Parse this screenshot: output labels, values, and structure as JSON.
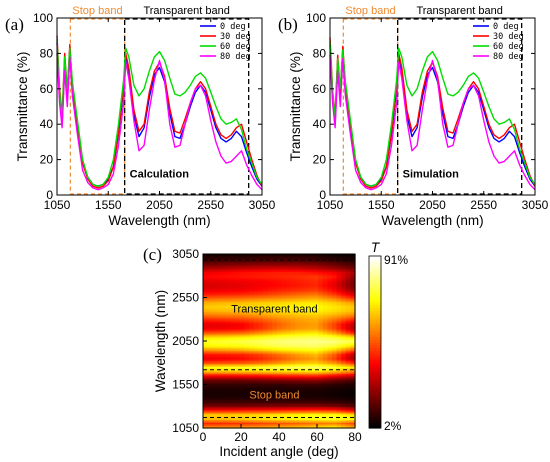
{
  "chart_data": [
    {
      "panel": "(a)",
      "type": "line",
      "xlabel": "Wavelength (nm)",
      "ylabel": "Transmittance (%)",
      "xlim": [
        1050,
        3050
      ],
      "ylim": [
        0,
        100
      ],
      "xticks": [
        "1050",
        "1550",
        "2050",
        "2550",
        "3050"
      ],
      "yticks": [
        "0",
        "20",
        "40",
        "60",
        "80",
        "100"
      ],
      "legend_position": "top-right",
      "band_labels": {
        "stop": "Stop band",
        "transparent": "Transparent band"
      },
      "annotation": "Calculation",
      "band_edges": {
        "stop": [
          1180,
          1710
        ],
        "transparent": [
          1710,
          2920
        ]
      },
      "x": [
        1050,
        1075,
        1100,
        1125,
        1150,
        1175,
        1200,
        1250,
        1300,
        1350,
        1400,
        1450,
        1500,
        1550,
        1600,
        1650,
        1700,
        1720,
        1750,
        1800,
        1850,
        1900,
        1950,
        2000,
        2050,
        2100,
        2150,
        2200,
        2250,
        2300,
        2350,
        2400,
        2450,
        2500,
        2550,
        2600,
        2650,
        2700,
        2750,
        2800,
        2850,
        2900,
        2950,
        3000,
        3050
      ],
      "series": [
        {
          "name": "0 deg",
          "color": "#0000ff",
          "values": [
            86,
            55,
            40,
            75,
            55,
            83,
            60,
            38,
            18,
            10,
            6,
            5,
            6,
            9,
            16,
            34,
            60,
            79,
            70,
            45,
            33,
            38,
            55,
            68,
            72,
            64,
            46,
            33,
            32,
            40,
            50,
            58,
            62,
            58,
            48,
            38,
            32,
            30,
            32,
            36,
            33,
            24,
            16,
            9,
            5
          ]
        },
        {
          "name": "30 deg",
          "color": "#ff0000",
          "values": [
            90,
            60,
            45,
            80,
            58,
            85,
            62,
            40,
            18,
            9,
            5,
            4,
            5,
            8,
            16,
            35,
            62,
            80,
            72,
            48,
            36,
            40,
            58,
            70,
            75,
            67,
            49,
            36,
            35,
            43,
            52,
            60,
            64,
            60,
            50,
            40,
            34,
            32,
            34,
            38,
            40,
            30,
            20,
            11,
            5
          ]
        },
        {
          "name": "60 deg",
          "color": "#00dd00",
          "values": [
            88,
            58,
            44,
            78,
            60,
            83,
            64,
            42,
            20,
            10,
            6,
            5,
            6,
            10,
            20,
            40,
            65,
            83,
            78,
            62,
            56,
            60,
            70,
            78,
            81,
            76,
            66,
            57,
            56,
            58,
            62,
            67,
            69,
            66,
            58,
            50,
            43,
            40,
            41,
            43,
            37,
            26,
            18,
            10,
            6
          ]
        },
        {
          "name": "80 deg",
          "color": "#ff00ff",
          "values": [
            80,
            52,
            38,
            70,
            50,
            78,
            56,
            34,
            14,
            7,
            4,
            3,
            4,
            6,
            12,
            28,
            52,
            75,
            66,
            42,
            25,
            28,
            48,
            65,
            76,
            65,
            40,
            27,
            28,
            40,
            52,
            60,
            62,
            56,
            42,
            30,
            22,
            18,
            19,
            22,
            25,
            17,
            11,
            6,
            3
          ]
        }
      ]
    },
    {
      "panel": "(b)",
      "type": "line",
      "xlabel": "Wavelength (nm)",
      "ylabel": "Transmittance (%)",
      "xlim": [
        1050,
        3050
      ],
      "ylim": [
        0,
        100
      ],
      "xticks": [
        "1050",
        "1550",
        "2050",
        "2550",
        "3050"
      ],
      "yticks": [
        "0",
        "20",
        "40",
        "60",
        "80",
        "100"
      ],
      "legend_position": "top-right",
      "band_labels": {
        "stop": "Stop band",
        "transparent": "Transparent band"
      },
      "annotation": "Simulation",
      "band_edges": {
        "stop": [
          1180,
          1710
        ],
        "transparent": [
          1710,
          2920
        ]
      },
      "x": [
        1050,
        1075,
        1100,
        1125,
        1150,
        1175,
        1200,
        1250,
        1300,
        1350,
        1400,
        1450,
        1500,
        1550,
        1600,
        1650,
        1700,
        1720,
        1750,
        1800,
        1850,
        1900,
        1950,
        2000,
        2050,
        2100,
        2150,
        2200,
        2250,
        2300,
        2350,
        2400,
        2450,
        2500,
        2550,
        2600,
        2650,
        2700,
        2750,
        2800,
        2850,
        2900,
        2950,
        3000,
        3050
      ],
      "series": [
        {
          "name": "0 deg",
          "color": "#0000ff",
          "values": [
            85,
            54,
            40,
            74,
            55,
            82,
            60,
            38,
            18,
            10,
            6,
            5,
            6,
            9,
            16,
            34,
            60,
            79,
            70,
            45,
            33,
            38,
            55,
            68,
            72,
            64,
            46,
            33,
            32,
            40,
            50,
            58,
            62,
            58,
            48,
            38,
            32,
            30,
            32,
            36,
            33,
            24,
            16,
            9,
            5
          ]
        },
        {
          "name": "30 deg",
          "color": "#ff0000",
          "values": [
            89,
            59,
            45,
            79,
            58,
            84,
            62,
            40,
            18,
            9,
            5,
            4,
            5,
            8,
            16,
            35,
            62,
            80,
            72,
            48,
            36,
            40,
            58,
            70,
            75,
            67,
            49,
            36,
            35,
            43,
            52,
            60,
            64,
            60,
            50,
            40,
            34,
            32,
            34,
            38,
            40,
            30,
            20,
            11,
            5
          ]
        },
        {
          "name": "60 deg",
          "color": "#00dd00",
          "values": [
            87,
            58,
            44,
            77,
            60,
            82,
            64,
            42,
            20,
            10,
            6,
            5,
            6,
            10,
            20,
            40,
            65,
            83,
            78,
            62,
            56,
            60,
            70,
            78,
            81,
            76,
            66,
            57,
            56,
            58,
            62,
            67,
            69,
            66,
            58,
            50,
            43,
            40,
            41,
            43,
            37,
            26,
            18,
            10,
            6
          ]
        },
        {
          "name": "80 deg",
          "color": "#ff00ff",
          "values": [
            79,
            52,
            38,
            70,
            50,
            77,
            56,
            34,
            14,
            7,
            4,
            3,
            4,
            6,
            12,
            28,
            52,
            75,
            66,
            42,
            25,
            28,
            48,
            65,
            76,
            65,
            40,
            27,
            28,
            40,
            52,
            60,
            62,
            56,
            42,
            30,
            22,
            18,
            19,
            22,
            25,
            17,
            11,
            6,
            3
          ]
        }
      ]
    },
    {
      "panel": "(c)",
      "type": "heatmap",
      "xlabel": "Incident angle (deg)",
      "ylabel": "Wavelength (nm)",
      "xlim": [
        0,
        80
      ],
      "ylim": [
        1050,
        3050
      ],
      "xticks": [
        "0",
        "20",
        "40",
        "60",
        "80"
      ],
      "yticks": [
        "1050",
        "1550",
        "2050",
        "2550",
        "3050"
      ],
      "colorbar": {
        "title": "T",
        "max_label": "91%",
        "min_label": "2%",
        "range": [
          2,
          91
        ]
      },
      "band_labels": {
        "stop": "Stop band",
        "transparent": "Transparent band"
      },
      "dashed_lines_wavelength": [
        1170,
        1720,
        2980
      ],
      "angles": [
        0,
        10,
        20,
        30,
        40,
        50,
        60,
        70,
        80
      ],
      "wavelengths": [
        1050,
        1100,
        1150,
        1200,
        1250,
        1300,
        1350,
        1400,
        1450,
        1500,
        1550,
        1600,
        1650,
        1700,
        1750,
        1800,
        1850,
        1900,
        1950,
        2000,
        2050,
        2100,
        2150,
        2200,
        2250,
        2300,
        2350,
        2400,
        2450,
        2500,
        2550,
        2600,
        2650,
        2700,
        2750,
        2800,
        2850,
        2900,
        2950,
        3000,
        3050
      ],
      "values": [
        [
          55,
          56,
          57,
          58,
          60,
          62,
          66,
          70,
          60
        ],
        [
          40,
          41,
          42,
          44,
          46,
          48,
          50,
          52,
          45
        ],
        [
          60,
          60,
          62,
          64,
          66,
          68,
          70,
          72,
          68
        ],
        [
          62,
          62,
          63,
          64,
          66,
          68,
          70,
          70,
          65
        ],
        [
          38,
          38,
          39,
          40,
          41,
          42,
          43,
          42,
          34
        ],
        [
          18,
          18,
          18,
          19,
          19,
          20,
          20,
          18,
          14
        ],
        [
          10,
          10,
          10,
          10,
          10,
          10,
          10,
          9,
          7
        ],
        [
          6,
          6,
          6,
          6,
          6,
          6,
          6,
          5,
          4
        ],
        [
          5,
          5,
          5,
          5,
          5,
          5,
          5,
          4,
          3
        ],
        [
          6,
          6,
          6,
          6,
          6,
          6,
          6,
          5,
          4
        ],
        [
          9,
          9,
          9,
          9,
          9,
          10,
          10,
          8,
          6
        ],
        [
          16,
          16,
          16,
          17,
          18,
          19,
          20,
          16,
          12
        ],
        [
          34,
          34,
          35,
          36,
          38,
          39,
          40,
          34,
          28
        ],
        [
          60,
          60,
          61,
          62,
          63,
          64,
          65,
          60,
          52
        ],
        [
          70,
          71,
          72,
          74,
          76,
          77,
          78,
          74,
          66
        ],
        [
          45,
          46,
          47,
          50,
          55,
          60,
          62,
          55,
          42
        ],
        [
          33,
          34,
          36,
          40,
          46,
          52,
          56,
          44,
          25
        ],
        [
          38,
          39,
          40,
          44,
          50,
          56,
          60,
          48,
          28
        ],
        [
          55,
          56,
          58,
          62,
          66,
          68,
          70,
          62,
          48
        ],
        [
          68,
          69,
          70,
          73,
          76,
          77,
          78,
          74,
          65
        ],
        [
          72,
          73,
          75,
          77,
          79,
          80,
          81,
          80,
          76
        ],
        [
          64,
          65,
          67,
          70,
          73,
          75,
          76,
          72,
          65
        ],
        [
          46,
          47,
          49,
          54,
          60,
          64,
          66,
          56,
          40
        ],
        [
          33,
          34,
          36,
          42,
          50,
          55,
          57,
          45,
          27
        ],
        [
          32,
          33,
          35,
          41,
          48,
          54,
          56,
          44,
          28
        ],
        [
          40,
          41,
          43,
          47,
          52,
          56,
          58,
          50,
          40
        ],
        [
          50,
          51,
          52,
          55,
          58,
          60,
          62,
          58,
          52
        ],
        [
          58,
          59,
          60,
          62,
          64,
          66,
          67,
          64,
          60
        ],
        [
          62,
          63,
          64,
          65,
          67,
          68,
          69,
          66,
          62
        ],
        [
          58,
          59,
          60,
          62,
          63,
          65,
          66,
          62,
          56
        ],
        [
          48,
          49,
          50,
          52,
          54,
          56,
          58,
          52,
          42
        ],
        [
          38,
          39,
          40,
          42,
          45,
          48,
          50,
          42,
          30
        ],
        [
          32,
          33,
          34,
          36,
          39,
          41,
          43,
          35,
          22
        ],
        [
          30,
          31,
          32,
          34,
          36,
          38,
          40,
          32,
          18
        ],
        [
          32,
          33,
          34,
          35,
          37,
          39,
          41,
          34,
          19
        ],
        [
          36,
          37,
          38,
          39,
          40,
          41,
          43,
          38,
          22
        ],
        [
          33,
          35,
          37,
          38,
          39,
          39,
          37,
          34,
          25
        ],
        [
          24,
          25,
          27,
          28,
          29,
          28,
          26,
          22,
          17
        ],
        [
          16,
          17,
          18,
          19,
          19,
          19,
          18,
          15,
          11
        ],
        [
          9,
          10,
          10,
          11,
          11,
          11,
          10,
          8,
          6
        ],
        [
          5,
          5,
          5,
          6,
          6,
          6,
          6,
          4,
          3
        ]
      ]
    }
  ]
}
